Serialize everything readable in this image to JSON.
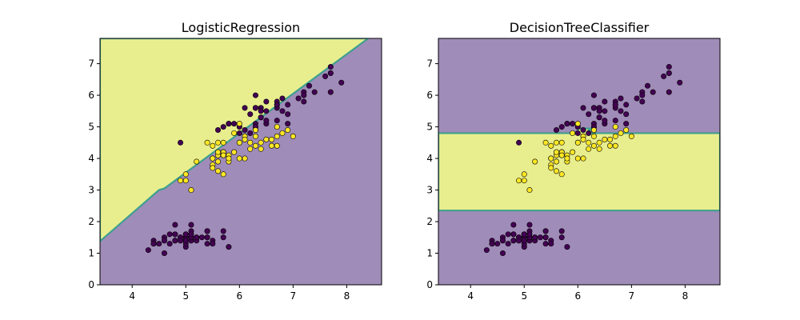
{
  "colors": {
    "class0_region": "#a08cb8",
    "class1_region": "#e8ee8e",
    "boundary": "#3e9f8f",
    "class0_point": "#440154",
    "class1_point": "#fde725",
    "point_edge": "#000000",
    "axes_edge": "#000000"
  },
  "chart_data": [
    {
      "type": "scatter",
      "title": "LogisticRegression",
      "xlabel": "",
      "ylabel": "",
      "xlim": [
        3.4,
        8.65
      ],
      "ylim": [
        0,
        7.8
      ],
      "xticks": [
        4,
        5,
        6,
        7,
        8
      ],
      "yticks": [
        0,
        1,
        2,
        3,
        4,
        5,
        6,
        7
      ],
      "grid": false,
      "decision_regions": {
        "kind": "polygon",
        "class1_polygon": [
          [
            3.4,
            1.38
          ],
          [
            4.5,
            3.0
          ],
          [
            4.6,
            3.05
          ],
          [
            8.4,
            7.8
          ],
          [
            3.4,
            7.8
          ]
        ]
      }
    },
    {
      "type": "scatter",
      "title": "DecisionTreeClassifier",
      "xlabel": "",
      "ylabel": "",
      "xlim": [
        3.4,
        8.65
      ],
      "ylim": [
        0,
        7.8
      ],
      "xticks": [
        4,
        5,
        6,
        7,
        8
      ],
      "yticks": [
        0,
        1,
        2,
        3,
        4,
        5,
        6,
        7
      ],
      "grid": false,
      "decision_regions": {
        "kind": "polygon",
        "class1_polygon": [
          [
            3.4,
            2.35
          ],
          [
            8.65,
            2.35
          ],
          [
            8.65,
            4.8
          ],
          [
            6.2,
            4.8
          ],
          [
            6.2,
            4.9
          ],
          [
            6.25,
            4.9
          ],
          [
            6.25,
            4.95
          ],
          [
            6.0,
            4.95
          ],
          [
            6.0,
            4.8
          ],
          [
            3.4,
            4.8
          ]
        ]
      }
    }
  ],
  "points": {
    "class0": [
      [
        5.1,
        1.4
      ],
      [
        4.9,
        1.4
      ],
      [
        4.7,
        1.3
      ],
      [
        4.6,
        1.5
      ],
      [
        5.0,
        1.4
      ],
      [
        5.4,
        1.7
      ],
      [
        4.6,
        1.4
      ],
      [
        5.0,
        1.5
      ],
      [
        4.4,
        1.4
      ],
      [
        4.9,
        1.5
      ],
      [
        5.4,
        1.5
      ],
      [
        4.8,
        1.6
      ],
      [
        4.8,
        1.4
      ],
      [
        4.3,
        1.1
      ],
      [
        5.8,
        1.2
      ],
      [
        5.7,
        1.5
      ],
      [
        5.4,
        1.3
      ],
      [
        5.1,
        1.4
      ],
      [
        5.7,
        1.7
      ],
      [
        5.1,
        1.5
      ],
      [
        5.4,
        1.7
      ],
      [
        5.1,
        1.5
      ],
      [
        4.6,
        1.0
      ],
      [
        5.1,
        1.7
      ],
      [
        4.8,
        1.9
      ],
      [
        5.0,
        1.6
      ],
      [
        5.0,
        1.6
      ],
      [
        5.2,
        1.5
      ],
      [
        5.2,
        1.4
      ],
      [
        4.7,
        1.6
      ],
      [
        4.8,
        1.6
      ],
      [
        5.4,
        1.5
      ],
      [
        5.2,
        1.5
      ],
      [
        5.5,
        1.4
      ],
      [
        4.9,
        1.5
      ],
      [
        5.0,
        1.2
      ],
      [
        5.5,
        1.3
      ],
      [
        4.9,
        1.4
      ],
      [
        4.4,
        1.3
      ],
      [
        5.1,
        1.5
      ],
      [
        5.0,
        1.3
      ],
      [
        4.5,
        1.3
      ],
      [
        4.4,
        1.3
      ],
      [
        5.0,
        1.6
      ],
      [
        5.1,
        1.9
      ],
      [
        4.8,
        1.4
      ],
      [
        5.1,
        1.6
      ],
      [
        4.6,
        1.4
      ],
      [
        5.3,
        1.5
      ],
      [
        5.0,
        1.4
      ],
      [
        6.3,
        6.0
      ],
      [
        5.8,
        5.1
      ],
      [
        7.1,
        5.9
      ],
      [
        6.3,
        5.6
      ],
      [
        6.5,
        5.8
      ],
      [
        7.6,
        6.6
      ],
      [
        4.9,
        4.5
      ],
      [
        7.3,
        6.3
      ],
      [
        6.7,
        5.8
      ],
      [
        7.2,
        6.1
      ],
      [
        6.5,
        5.1
      ],
      [
        6.4,
        5.3
      ],
      [
        6.8,
        5.5
      ],
      [
        5.7,
        5.0
      ],
      [
        6.4,
        5.3
      ],
      [
        6.5,
        5.5
      ],
      [
        7.7,
        6.7
      ],
      [
        7.7,
        6.9
      ],
      [
        6.0,
        5.0
      ],
      [
        6.9,
        5.7
      ],
      [
        5.6,
        4.9
      ],
      [
        7.7,
        6.7
      ],
      [
        6.3,
        4.9
      ],
      [
        6.7,
        5.7
      ],
      [
        7.2,
        6.0
      ],
      [
        6.2,
        4.8
      ],
      [
        6.1,
        4.9
      ],
      [
        6.4,
        5.6
      ],
      [
        7.2,
        5.8
      ],
      [
        7.4,
        6.1
      ],
      [
        7.9,
        6.4
      ],
      [
        6.4,
        5.6
      ],
      [
        6.3,
        5.1
      ],
      [
        6.1,
        5.6
      ],
      [
        7.7,
        6.1
      ],
      [
        6.3,
        5.6
      ],
      [
        6.4,
        5.5
      ],
      [
        6.0,
        4.8
      ],
      [
        6.9,
        5.4
      ],
      [
        6.7,
        5.6
      ],
      [
        6.9,
        5.1
      ],
      [
        5.8,
        5.1
      ],
      [
        6.8,
        5.9
      ],
      [
        6.7,
        5.7
      ],
      [
        6.7,
        5.2
      ],
      [
        6.3,
        5.0
      ],
      [
        6.5,
        5.2
      ],
      [
        6.2,
        5.4
      ],
      [
        5.9,
        5.1
      ],
      [
        6.3,
        5.6
      ]
    ],
    "class1": [
      [
        7.0,
        4.7
      ],
      [
        6.4,
        4.5
      ],
      [
        6.9,
        4.9
      ],
      [
        5.5,
        4.0
      ],
      [
        6.5,
        4.6
      ],
      [
        5.7,
        4.5
      ],
      [
        6.3,
        4.7
      ],
      [
        4.9,
        3.3
      ],
      [
        6.6,
        4.6
      ],
      [
        5.2,
        3.9
      ],
      [
        5.0,
        3.5
      ],
      [
        5.9,
        4.2
      ],
      [
        6.0,
        4.0
      ],
      [
        6.1,
        4.7
      ],
      [
        5.6,
        3.6
      ],
      [
        6.7,
        4.4
      ],
      [
        5.6,
        4.5
      ],
      [
        5.8,
        4.1
      ],
      [
        6.2,
        4.5
      ],
      [
        5.6,
        3.9
      ],
      [
        5.9,
        4.8
      ],
      [
        6.1,
        4.0
      ],
      [
        6.3,
        4.9
      ],
      [
        6.1,
        4.7
      ],
      [
        6.4,
        4.3
      ],
      [
        6.6,
        4.4
      ],
      [
        6.8,
        4.8
      ],
      [
        6.7,
        5.0
      ],
      [
        6.0,
        4.5
      ],
      [
        5.7,
        3.5
      ],
      [
        5.5,
        3.8
      ],
      [
        5.5,
        3.7
      ],
      [
        5.8,
        3.9
      ],
      [
        6.0,
        5.1
      ],
      [
        5.4,
        4.5
      ],
      [
        6.0,
        4.5
      ],
      [
        6.7,
        4.7
      ],
      [
        6.3,
        4.4
      ],
      [
        5.6,
        4.1
      ],
      [
        5.5,
        4.0
      ],
      [
        5.5,
        4.4
      ],
      [
        6.1,
        4.6
      ],
      [
        5.8,
        4.0
      ],
      [
        5.0,
        3.3
      ],
      [
        5.6,
        4.2
      ],
      [
        5.7,
        4.2
      ],
      [
        5.7,
        4.2
      ],
      [
        6.2,
        4.3
      ],
      [
        5.1,
        3.0
      ],
      [
        5.7,
        4.1
      ]
    ]
  }
}
